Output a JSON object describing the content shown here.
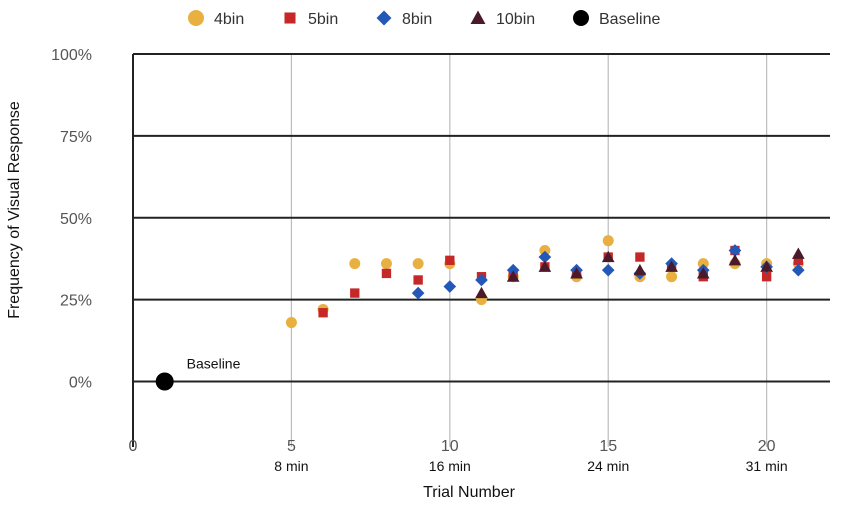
{
  "chart_data": {
    "type": "scatter",
    "xlabel": "Trial Number",
    "ylabel": "Frequency of Visual Response",
    "xlim": [
      0,
      22
    ],
    "ylim": [
      -0.2,
      1.0
    ],
    "x_ticks": [
      0,
      5,
      10,
      15,
      20
    ],
    "y_ticks": [
      0,
      0.25,
      0.5,
      0.75,
      1.0
    ],
    "y_tick_labels": [
      "0%",
      "25%",
      "50%",
      "75%",
      "100%"
    ],
    "x_secondary_labels": [
      {
        "x": 5,
        "label": "8 min"
      },
      {
        "x": 10,
        "label": "16 min"
      },
      {
        "x": 15,
        "label": "24 min"
      },
      {
        "x": 20,
        "label": "31 min"
      }
    ],
    "grid": {
      "vertical": true,
      "horizontal": true
    },
    "legend_position": "top",
    "series": [
      {
        "name": "4bin",
        "marker": "circle",
        "color": "#E8B040",
        "points": [
          [
            5,
            0.18
          ],
          [
            6,
            0.22
          ],
          [
            7,
            0.36
          ],
          [
            8,
            0.36
          ],
          [
            9,
            0.36
          ],
          [
            10,
            0.36
          ],
          [
            11,
            0.25
          ],
          [
            12,
            0.32
          ],
          [
            13,
            0.4
          ],
          [
            14,
            0.32
          ],
          [
            15,
            0.43
          ],
          [
            16,
            0.32
          ],
          [
            17,
            0.32
          ],
          [
            18,
            0.36
          ],
          [
            19,
            0.36
          ],
          [
            20,
            0.36
          ],
          [
            21,
            0.36
          ]
        ]
      },
      {
        "name": "5bin",
        "marker": "square",
        "color": "#C62828",
        "points": [
          [
            6,
            0.21
          ],
          [
            7,
            0.27
          ],
          [
            8,
            0.33
          ],
          [
            9,
            0.31
          ],
          [
            10,
            0.37
          ],
          [
            11,
            0.32
          ],
          [
            12,
            0.32
          ],
          [
            13,
            0.35
          ],
          [
            14,
            0.33
          ],
          [
            15,
            0.38
          ],
          [
            16,
            0.38
          ],
          [
            17,
            0.35
          ],
          [
            18,
            0.32
          ],
          [
            19,
            0.4
          ],
          [
            20,
            0.32
          ],
          [
            21,
            0.37
          ]
        ]
      },
      {
        "name": "8bin",
        "marker": "diamond",
        "color": "#2458B8",
        "points": [
          [
            9,
            0.27
          ],
          [
            10,
            0.29
          ],
          [
            11,
            0.31
          ],
          [
            12,
            0.34
          ],
          [
            13,
            0.38
          ],
          [
            14,
            0.34
          ],
          [
            15,
            0.34
          ],
          [
            16,
            0.33
          ],
          [
            17,
            0.36
          ],
          [
            18,
            0.34
          ],
          [
            19,
            0.4
          ],
          [
            20,
            0.35
          ],
          [
            21,
            0.34
          ]
        ]
      },
      {
        "name": "10bin",
        "marker": "triangle",
        "color": "#4A1A2A",
        "points": [
          [
            11,
            0.27
          ],
          [
            12,
            0.32
          ],
          [
            13,
            0.35
          ],
          [
            14,
            0.33
          ],
          [
            15,
            0.38
          ],
          [
            16,
            0.34
          ],
          [
            17,
            0.35
          ],
          [
            18,
            0.33
          ],
          [
            19,
            0.37
          ],
          [
            20,
            0.35
          ],
          [
            21,
            0.39
          ]
        ]
      },
      {
        "name": "Baseline",
        "marker": "circle",
        "color": "#000000",
        "points": [
          [
            1,
            0.0
          ]
        ]
      }
    ],
    "annotations": [
      {
        "text": "Baseline",
        "x": 1,
        "y": 0.0
      }
    ]
  }
}
